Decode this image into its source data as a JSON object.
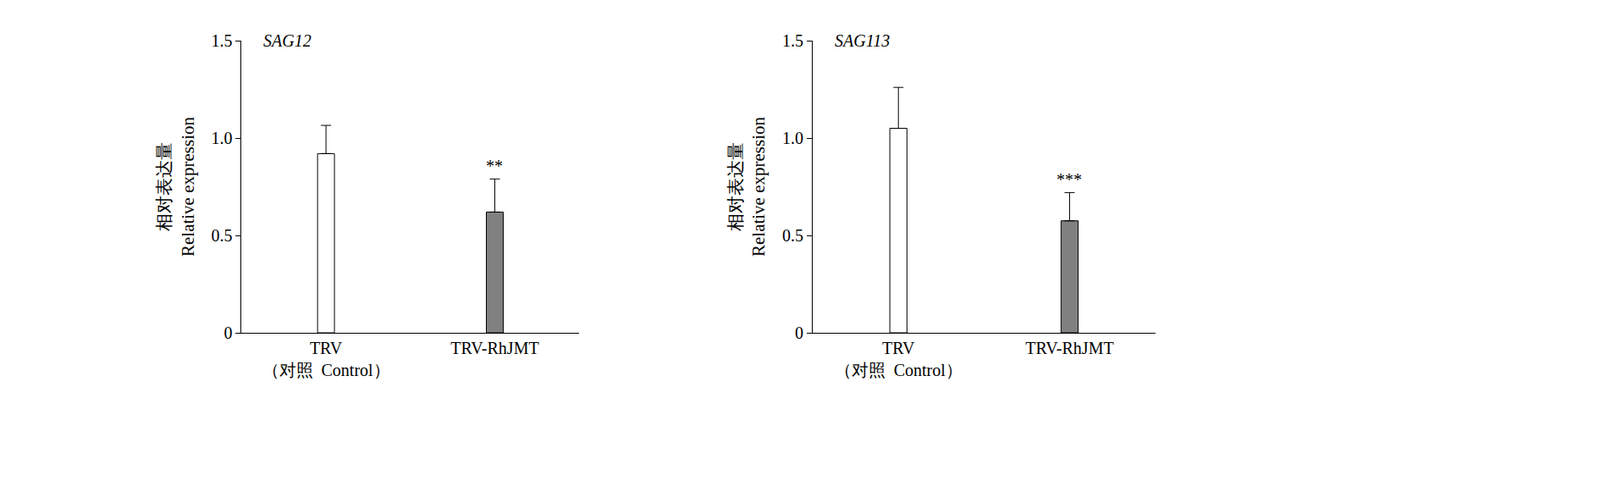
{
  "chart_data": [
    {
      "type": "bar",
      "title": "SAG12",
      "categories": [
        "TRV\n（对照  Control）",
        "TRV-RhJMT"
      ],
      "values": [
        0.92,
        0.62
      ],
      "errors": [
        0.145,
        0.17
      ],
      "colors": [
        "#ffffff",
        "#808080"
      ],
      "y_label": "相对表达量\nRelative expression",
      "ylim": [
        0,
        1.5
      ],
      "yticks": [
        0,
        0.5,
        {
          "value": 1,
          "label": "1.0"
        },
        1.5
      ],
      "annotations": [
        {
          "category": "TRV-RhJMT",
          "text": "**"
        }
      ]
    },
    {
      "type": "bar",
      "title": "SAG113",
      "categories": [
        "TRV\n（对照  Control）",
        "TRV-RhJMT"
      ],
      "values": [
        1.05,
        0.575
      ],
      "errors": [
        0.21,
        0.145
      ],
      "colors": [
        "#ffffff",
        "#808080"
      ],
      "y_label": "相对表达量\nRelative expression",
      "ylim": [
        0,
        1.5
      ],
      "yticks": [
        0,
        0.5,
        {
          "value": 1,
          "label": "1.0"
        },
        1.5
      ],
      "annotations": [
        {
          "category": "TRV-RhJMT",
          "text": "***"
        }
      ]
    }
  ]
}
